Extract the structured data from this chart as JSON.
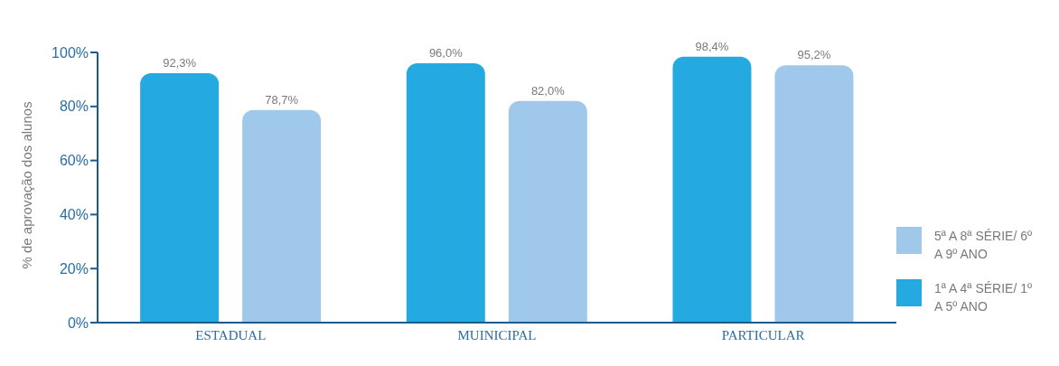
{
  "chart_data": {
    "type": "bar",
    "ylabel": "% de aprovação dos alunos",
    "categories": [
      "ESTADUAL",
      "MUINICIPAL",
      "PARTICULAR"
    ],
    "series": [
      {
        "name": "1ª A 4ª SÉRIE/ 1º A 5º ANO",
        "color": "#24a9e0",
        "values": [
          92.3,
          96.0,
          98.4
        ],
        "value_labels": [
          "92,3%",
          "96,0%",
          "98,4%"
        ]
      },
      {
        "name": "5ª A 8ª SÉRIE/ 6º A 9º ANO",
        "color": "#9fc8ea",
        "values": [
          78.7,
          82.0,
          95.2
        ],
        "value_labels": [
          "78,7%",
          "82,0%",
          "95,2%"
        ]
      }
    ],
    "ylim": [
      0,
      100
    ],
    "yticks": [
      {
        "value": 0,
        "label": "0%"
      },
      {
        "value": 20,
        "label": "20%"
      },
      {
        "value": 40,
        "label": "40%"
      },
      {
        "value": 60,
        "label": "60%"
      },
      {
        "value": 80,
        "label": "80%"
      },
      {
        "value": 100,
        "label": "100%"
      }
    ],
    "grid": false,
    "legend": "right"
  }
}
